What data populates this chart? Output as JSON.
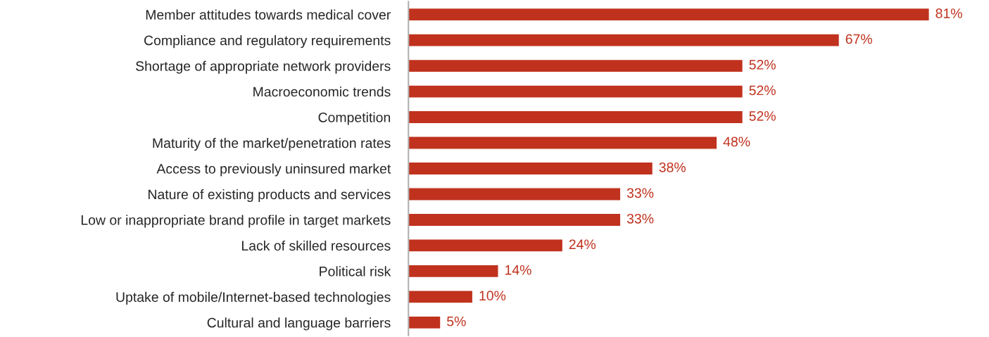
{
  "chart_data": {
    "type": "bar",
    "orientation": "horizontal",
    "categories": [
      "Member attitudes towards medical cover",
      "Compliance and regulatory requirements",
      "Shortage of appropriate network providers",
      "Macroeconomic trends",
      "Competition",
      "Maturity of the market/penetration rates",
      "Access to previously uninsured market",
      "Nature of existing products and services",
      "Low or inappropriate brand profile in target markets",
      "Lack of skilled resources",
      "Political risk",
      "Uptake of mobile/Internet-based technologies",
      "Cultural and language barriers"
    ],
    "values": [
      81,
      67,
      52,
      52,
      52,
      48,
      38,
      33,
      33,
      24,
      14,
      10,
      5
    ],
    "value_labels": [
      "81%",
      "67%",
      "52%",
      "52%",
      "52%",
      "48%",
      "38%",
      "33%",
      "33%",
      "24%",
      "14%",
      "10%",
      "5%"
    ],
    "color": "#c0321e",
    "grid": false,
    "legend": false
  }
}
